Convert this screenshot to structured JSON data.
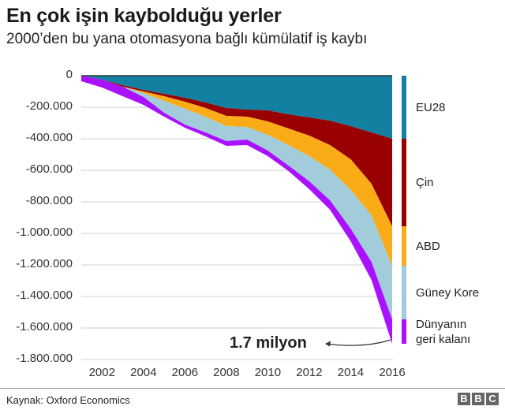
{
  "header": {
    "title": "En çok işin kaybolduğu yerler",
    "subtitle": "2000’den bu yana otomasyona bağlı kümülatif iş kaybı"
  },
  "axis": {
    "y_ticks": [
      "0",
      "-200.000",
      "-400.000",
      "-600.000",
      "-800.000",
      "-1.000.000",
      "-1.200.000",
      "-1.400.000",
      "-1.600.000",
      "-1.800.000"
    ],
    "x_ticks": [
      "2002",
      "2004",
      "2006",
      "2008",
      "2010",
      "2012",
      "2014",
      "2016"
    ]
  },
  "legend": [
    {
      "label": "EU28",
      "color": "#1380A1"
    },
    {
      "label": "Çin",
      "color": "#990000"
    },
    {
      "label": "ABD",
      "color": "#FAAB18"
    },
    {
      "label": "Güney Kore",
      "color": "#A2CCD9"
    },
    {
      "label": "Dünyanın\ngeri kalanı",
      "color": "#AA11FF"
    }
  ],
  "annotation": {
    "text": "1.7 milyon"
  },
  "footer": {
    "source": "Kaynak: Oxford Economics",
    "logo": [
      "B",
      "B",
      "C"
    ]
  },
  "chart_data": {
    "type": "area",
    "stacked": true,
    "title": "En çok işin kaybolduğu yerler",
    "subtitle": "2000’den bu yana otomasyona bağlı kümülatif iş kaybı",
    "xlabel": "",
    "ylabel": "",
    "ylim": [
      -1800000,
      0
    ],
    "grid": true,
    "legend_position": "right",
    "x": [
      2001,
      2002,
      2003,
      2004,
      2005,
      2006,
      2007,
      2008,
      2009,
      2010,
      2011,
      2012,
      2013,
      2014,
      2015,
      2016
    ],
    "series": [
      {
        "name": "EU28",
        "color": "#1380A1",
        "values": [
          0,
          -25000,
          -60000,
          -90000,
          -115000,
          -140000,
          -170000,
          -205000,
          -215000,
          -220000,
          -245000,
          -265000,
          -285000,
          -320000,
          -360000,
          -400000
        ]
      },
      {
        "name": "Çin",
        "color": "#990000",
        "values": [
          0,
          0,
          -10000,
          -10000,
          -15000,
          -25000,
          -35000,
          -50000,
          -45000,
          -70000,
          -90000,
          -115000,
          -155000,
          -210000,
          -325000,
          -555000
        ]
      },
      {
        "name": "ABD",
        "color": "#FAAB18",
        "values": [
          0,
          0,
          0,
          -10000,
          -30000,
          -45000,
          -55000,
          -65000,
          -65000,
          -85000,
          -105000,
          -130000,
          -155000,
          -195000,
          -200000,
          -250000
        ]
      },
      {
        "name": "Güney Kore",
        "color": "#A2CCD9",
        "values": [
          0,
          0,
          0,
          -25000,
          -75000,
          -100000,
          -100000,
          -95000,
          -80000,
          -100000,
          -130000,
          -160000,
          -195000,
          -245000,
          -295000,
          -340000
        ]
      },
      {
        "name": "Dünyanın geri kalanı",
        "color": "#AA11FF",
        "values": [
          -35000,
          -50000,
          -60000,
          -50000,
          -25000,
          -20000,
          -25000,
          -30000,
          -35000,
          -35000,
          -35000,
          -50000,
          -60000,
          -80000,
          -115000,
          -155000
        ]
      }
    ],
    "total_2016": -1700000,
    "annotations": [
      {
        "text": "1.7 milyon",
        "x": 2016,
        "y": -1700000
      }
    ],
    "source": "Kaynak: Oxford Economics"
  }
}
